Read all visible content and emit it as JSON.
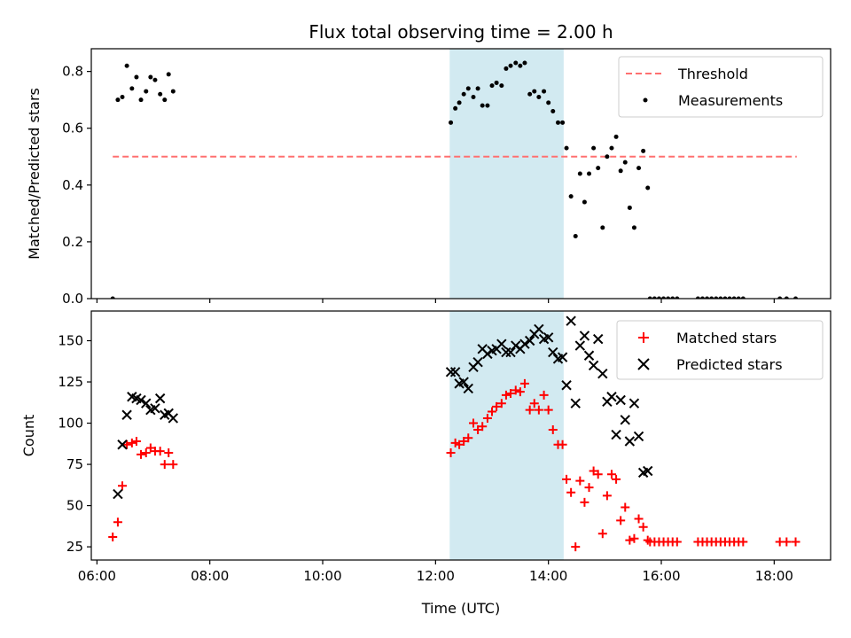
{
  "chart_data": [
    {
      "type": "scatter",
      "title": "Flux total observing time = 2.00 h",
      "xlabel": "",
      "ylabel": "Matched/Predicted stars",
      "xlim": [
        5.9,
        19.0
      ],
      "ylim": [
        0.0,
        0.88
      ],
      "xticks": [
        6,
        8,
        10,
        12,
        14,
        16,
        18
      ],
      "yticks": [
        0.0,
        0.2,
        0.4,
        0.6,
        0.8
      ],
      "ytick_labels": [
        "0.0",
        "0.2",
        "0.4",
        "0.6",
        "0.8"
      ],
      "highlight": {
        "x_start": 12.25,
        "x_end": 14.27,
        "color": "#add8e6"
      },
      "threshold": {
        "name": "Threshold",
        "value": 0.5,
        "x_start": 6.28,
        "x_end": 18.4,
        "color": "#ff7070"
      },
      "legend_position": "upper right",
      "series": [
        {
          "name": "Measurements",
          "color": "#000000",
          "marker": "dot",
          "points": [
            [
              6.28,
              0.0
            ],
            [
              6.37,
              0.7
            ],
            [
              6.45,
              0.71
            ],
            [
              6.53,
              0.82
            ],
            [
              6.62,
              0.74
            ],
            [
              6.7,
              0.78
            ],
            [
              6.78,
              0.7
            ],
            [
              6.87,
              0.73
            ],
            [
              6.95,
              0.78
            ],
            [
              7.03,
              0.77
            ],
            [
              7.12,
              0.72
            ],
            [
              7.2,
              0.7
            ],
            [
              7.27,
              0.79
            ],
            [
              7.35,
              0.73
            ],
            [
              12.27,
              0.62
            ],
            [
              12.35,
              0.67
            ],
            [
              12.42,
              0.69
            ],
            [
              12.5,
              0.72
            ],
            [
              12.58,
              0.74
            ],
            [
              12.67,
              0.71
            ],
            [
              12.75,
              0.74
            ],
            [
              12.83,
              0.68
            ],
            [
              12.92,
              0.68
            ],
            [
              13.0,
              0.75
            ],
            [
              13.08,
              0.76
            ],
            [
              13.17,
              0.75
            ],
            [
              13.25,
              0.81
            ],
            [
              13.33,
              0.82
            ],
            [
              13.42,
              0.83
            ],
            [
              13.5,
              0.82
            ],
            [
              13.58,
              0.83
            ],
            [
              13.67,
              0.72
            ],
            [
              13.75,
              0.73
            ],
            [
              13.83,
              0.71
            ],
            [
              13.92,
              0.73
            ],
            [
              14.0,
              0.69
            ],
            [
              14.08,
              0.66
            ],
            [
              14.17,
              0.62
            ],
            [
              14.25,
              0.62
            ],
            [
              14.32,
              0.53
            ],
            [
              14.4,
              0.36
            ],
            [
              14.48,
              0.22
            ],
            [
              14.56,
              0.44
            ],
            [
              14.64,
              0.34
            ],
            [
              14.72,
              0.44
            ],
            [
              14.8,
              0.53
            ],
            [
              14.88,
              0.46
            ],
            [
              14.96,
              0.25
            ],
            [
              15.04,
              0.5
            ],
            [
              15.12,
              0.53
            ],
            [
              15.2,
              0.57
            ],
            [
              15.28,
              0.45
            ],
            [
              15.36,
              0.48
            ],
            [
              15.44,
              0.32
            ],
            [
              15.52,
              0.25
            ],
            [
              15.6,
              0.46
            ],
            [
              15.68,
              0.52
            ],
            [
              15.76,
              0.39
            ],
            [
              15.8,
              0.0
            ],
            [
              15.88,
              0.0
            ],
            [
              15.96,
              0.0
            ],
            [
              16.04,
              0.0
            ],
            [
              16.12,
              0.0
            ],
            [
              16.2,
              0.0
            ],
            [
              16.28,
              0.0
            ],
            [
              16.65,
              0.0
            ],
            [
              16.73,
              0.0
            ],
            [
              16.81,
              0.0
            ],
            [
              16.89,
              0.0
            ],
            [
              16.97,
              0.0
            ],
            [
              17.05,
              0.0
            ],
            [
              17.13,
              0.0
            ],
            [
              17.21,
              0.0
            ],
            [
              17.29,
              0.0
            ],
            [
              17.37,
              0.0
            ],
            [
              17.45,
              0.0
            ],
            [
              18.1,
              0.0
            ],
            [
              18.22,
              0.0
            ],
            [
              18.38,
              0.0
            ]
          ]
        }
      ]
    },
    {
      "type": "scatter",
      "title": "",
      "xlabel": "Time (UTC)",
      "ylabel": "Count",
      "xlim": [
        5.9,
        19.0
      ],
      "ylim": [
        17,
        168
      ],
      "xticks": [
        6,
        8,
        10,
        12,
        14,
        16,
        18
      ],
      "xtick_labels": [
        "06:00",
        "08:00",
        "10:00",
        "12:00",
        "14:00",
        "16:00",
        "18:00"
      ],
      "yticks": [
        25,
        50,
        75,
        100,
        125,
        150
      ],
      "highlight": {
        "x_start": 12.25,
        "x_end": 14.27,
        "color": "#add8e6"
      },
      "legend_position": "upper right",
      "series": [
        {
          "name": "Matched stars",
          "color": "#ff0000",
          "marker": "plus",
          "points": [
            [
              6.28,
              31
            ],
            [
              6.37,
              40
            ],
            [
              6.45,
              62
            ],
            [
              6.53,
              87
            ],
            [
              6.62,
              88
            ],
            [
              6.7,
              89
            ],
            [
              6.78,
              81
            ],
            [
              6.87,
              82
            ],
            [
              6.95,
              85
            ],
            [
              7.03,
              83
            ],
            [
              7.12,
              83
            ],
            [
              7.2,
              75
            ],
            [
              7.27,
              82
            ],
            [
              7.35,
              75
            ],
            [
              12.27,
              82
            ],
            [
              12.35,
              88
            ],
            [
              12.42,
              87
            ],
            [
              12.5,
              89
            ],
            [
              12.58,
              91
            ],
            [
              12.67,
              100
            ],
            [
              12.75,
              96
            ],
            [
              12.83,
              98
            ],
            [
              12.92,
              103
            ],
            [
              13.0,
              107
            ],
            [
              13.08,
              110
            ],
            [
              13.17,
              112
            ],
            [
              13.25,
              117
            ],
            [
              13.33,
              118
            ],
            [
              13.42,
              120
            ],
            [
              13.5,
              119
            ],
            [
              13.58,
              124
            ],
            [
              13.67,
              108
            ],
            [
              13.75,
              112
            ],
            [
              13.83,
              108
            ],
            [
              13.92,
              117
            ],
            [
              14.0,
              108
            ],
            [
              14.08,
              96
            ],
            [
              14.17,
              87
            ],
            [
              14.25,
              87
            ],
            [
              14.32,
              66
            ],
            [
              14.4,
              58
            ],
            [
              14.48,
              25
            ],
            [
              14.56,
              65
            ],
            [
              14.64,
              52
            ],
            [
              14.72,
              61
            ],
            [
              14.8,
              71
            ],
            [
              14.88,
              69
            ],
            [
              14.96,
              33
            ],
            [
              15.04,
              56
            ],
            [
              15.12,
              69
            ],
            [
              15.2,
              66
            ],
            [
              15.28,
              41
            ],
            [
              15.36,
              49
            ],
            [
              15.44,
              29
            ],
            [
              15.52,
              30
            ],
            [
              15.6,
              42
            ],
            [
              15.68,
              37
            ],
            [
              15.76,
              29
            ],
            [
              15.8,
              28
            ],
            [
              15.88,
              28
            ],
            [
              15.96,
              28
            ],
            [
              16.04,
              28
            ],
            [
              16.12,
              28
            ],
            [
              16.2,
              28
            ],
            [
              16.28,
              28
            ],
            [
              16.65,
              28
            ],
            [
              16.73,
              28
            ],
            [
              16.81,
              28
            ],
            [
              16.89,
              28
            ],
            [
              16.97,
              28
            ],
            [
              17.05,
              28
            ],
            [
              17.13,
              28
            ],
            [
              17.21,
              28
            ],
            [
              17.29,
              28
            ],
            [
              17.37,
              28
            ],
            [
              17.45,
              28
            ],
            [
              18.1,
              28
            ],
            [
              18.22,
              28
            ],
            [
              18.38,
              28
            ]
          ]
        },
        {
          "name": "Predicted stars",
          "color": "#000000",
          "marker": "cross",
          "points": [
            [
              6.37,
              57
            ],
            [
              6.45,
              87
            ],
            [
              6.53,
              105
            ],
            [
              6.62,
              116
            ],
            [
              6.7,
              115
            ],
            [
              6.78,
              114
            ],
            [
              6.87,
              112
            ],
            [
              6.95,
              108
            ],
            [
              7.03,
              109
            ],
            [
              7.12,
              115
            ],
            [
              7.2,
              105
            ],
            [
              7.27,
              106
            ],
            [
              7.35,
              103
            ],
            [
              12.27,
              131
            ],
            [
              12.35,
              131
            ],
            [
              12.42,
              124
            ],
            [
              12.5,
              125
            ],
            [
              12.58,
              121
            ],
            [
              12.67,
              134
            ],
            [
              12.75,
              137
            ],
            [
              12.83,
              145
            ],
            [
              12.92,
              142
            ],
            [
              13.0,
              144
            ],
            [
              13.08,
              145
            ],
            [
              13.17,
              148
            ],
            [
              13.25,
              143
            ],
            [
              13.33,
              143
            ],
            [
              13.42,
              147
            ],
            [
              13.5,
              145
            ],
            [
              13.58,
              148
            ],
            [
              13.67,
              150
            ],
            [
              13.75,
              154
            ],
            [
              13.83,
              157
            ],
            [
              13.92,
              151
            ],
            [
              14.0,
              152
            ],
            [
              14.08,
              143
            ],
            [
              14.17,
              139
            ],
            [
              14.25,
              140
            ],
            [
              14.32,
              123
            ],
            [
              14.4,
              162
            ],
            [
              14.48,
              112
            ],
            [
              14.56,
              147
            ],
            [
              14.64,
              153
            ],
            [
              14.72,
              141
            ],
            [
              14.8,
              135
            ],
            [
              14.88,
              151
            ],
            [
              14.96,
              130
            ],
            [
              15.04,
              113
            ],
            [
              15.12,
              116
            ],
            [
              15.2,
              93
            ],
            [
              15.28,
              114
            ],
            [
              15.36,
              102
            ],
            [
              15.44,
              89
            ],
            [
              15.52,
              112
            ],
            [
              15.6,
              92
            ],
            [
              15.68,
              70
            ],
            [
              15.76,
              71
            ]
          ]
        }
      ]
    }
  ]
}
